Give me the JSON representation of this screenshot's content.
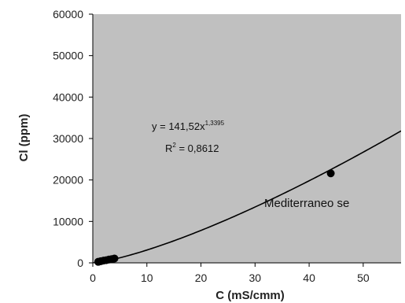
{
  "chart_data": {
    "type": "scatter",
    "title": "",
    "xlabel": "C (mS/cmm)",
    "ylabel": "Cl (ppm)",
    "xlim": [
      0,
      57
    ],
    "ylim": [
      0,
      60000
    ],
    "xticks": [
      0,
      10,
      20,
      30,
      40,
      50
    ],
    "yticks": [
      0,
      10000,
      20000,
      30000,
      40000,
      50000,
      60000
    ],
    "grid": false,
    "plot_background": "#c0c0c0",
    "series": [
      {
        "x": [
          1.0,
          1.5,
          2.0,
          2.5,
          3.0,
          3.5,
          4.0,
          44.0
        ],
        "y": [
          250,
          400,
          550,
          650,
          800,
          900,
          1050,
          21600
        ],
        "marker": "circle",
        "color": "#000000"
      }
    ],
    "trendline": {
      "coefficient": 141.52,
      "exponent": 1.3395,
      "equation_label": "y = 141,52x",
      "equation_exponent": "1,3395",
      "r2_label": "R",
      "r2_superscript": "2",
      "r2_value": " = 0,8612"
    },
    "annotation": "Mediterraneo se"
  }
}
